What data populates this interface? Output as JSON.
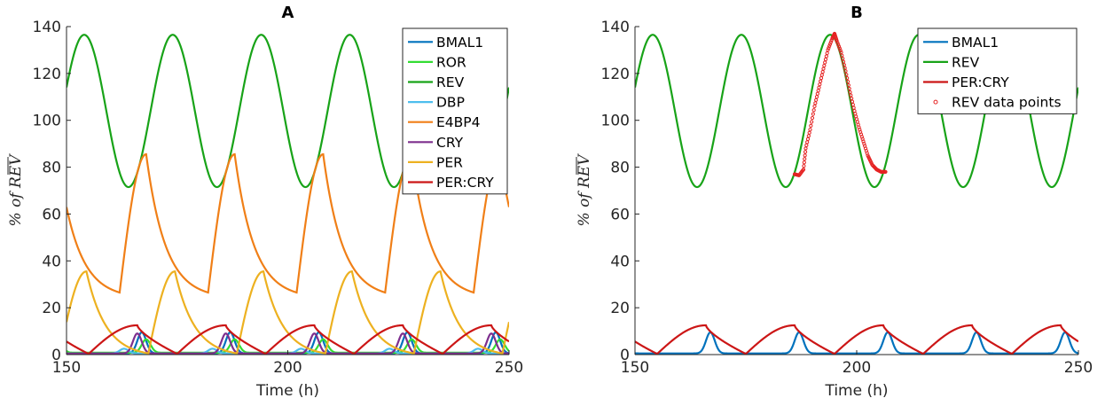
{
  "chart_data": [
    {
      "type": "line",
      "title": "A",
      "xlabel": "Time (h)",
      "ylabel": "% of REV",
      "xlim": [
        150,
        250
      ],
      "ylim": [
        0,
        140
      ],
      "xticks": [
        "150",
        "200",
        "250"
      ],
      "yticks": [
        "0",
        "20",
        "40",
        "60",
        "80",
        "100",
        "120",
        "140"
      ],
      "legend_position": "top-right",
      "series": [
        {
          "name": "BMAL1",
          "color": "#0072BD",
          "shape": "pulse",
          "min": 0.5,
          "max": 9.5,
          "phase": 167
        },
        {
          "name": "ROR",
          "color": "#33DD33",
          "shape": "pulse",
          "min": 0.8,
          "max": 6.5,
          "phase": 168
        },
        {
          "name": "REV",
          "color": "#18A318",
          "shape": "sine",
          "min": 71.5,
          "max": 136.5,
          "phase": 154
        },
        {
          "name": "DBP",
          "color": "#4DBEEE",
          "shape": "pulse",
          "min": 0.5,
          "max": 2.5,
          "phase": 163
        },
        {
          "name": "E4BP4",
          "color": "#F07F17",
          "shape": "cusp",
          "min": 26.5,
          "max": 85.5,
          "phase": 168
        },
        {
          "name": "CRY",
          "color": "#7E2F8E",
          "shape": "pulse",
          "min": 0.5,
          "max": 9.0,
          "phase": 166
        },
        {
          "name": "PER",
          "color": "#EDB120",
          "shape": "cusp",
          "min": 0.5,
          "max": 35.5,
          "phase": 154.5
        },
        {
          "name": "PER:CRY",
          "color": "#CC1616",
          "shape": "saw",
          "min": 0.3,
          "max": 12.5,
          "phase": 161
        }
      ],
      "period": 20
    },
    {
      "type": "line",
      "title": "B",
      "xlabel": "Time (h)",
      "ylabel": "% of REV",
      "xlim": [
        150,
        250
      ],
      "ylim": [
        0,
        140
      ],
      "xticks": [
        "150",
        "200",
        "250"
      ],
      "yticks": [
        "0",
        "20",
        "40",
        "60",
        "80",
        "100",
        "120",
        "140"
      ],
      "legend_position": "top-right",
      "series": [
        {
          "name": "BMAL1",
          "color": "#0072BD",
          "shape": "pulse",
          "min": 0.5,
          "max": 9.5,
          "phase": 167
        },
        {
          "name": "REV",
          "color": "#18A318",
          "shape": "sine",
          "min": 71.5,
          "max": 136.5,
          "phase": 154
        },
        {
          "name": "PER:CRY",
          "color": "#CC1616",
          "shape": "saw",
          "min": 0.3,
          "max": 12.5,
          "phase": 161
        }
      ],
      "scatter": {
        "name": "REV data points",
        "color": "#E52222",
        "points": [
          [
            186,
            77
          ],
          [
            187,
            76.5
          ],
          [
            188,
            79
          ],
          [
            188.5,
            88
          ],
          [
            189.5,
            96
          ],
          [
            190.5,
            106
          ],
          [
            191.5,
            114
          ],
          [
            192.5,
            122
          ],
          [
            193.5,
            130
          ],
          [
            194.5,
            135
          ],
          [
            195,
            137
          ],
          [
            195.5,
            134
          ],
          [
            196.5,
            129
          ],
          [
            197.5,
            121
          ],
          [
            198.5,
            112
          ],
          [
            199.5,
            104
          ],
          [
            200.5,
            97
          ],
          [
            201.5,
            91
          ],
          [
            202.5,
            85
          ],
          [
            203.5,
            81
          ],
          [
            204.5,
            79
          ],
          [
            205.5,
            78
          ],
          [
            206.5,
            78
          ]
        ]
      },
      "period": 20
    }
  ]
}
